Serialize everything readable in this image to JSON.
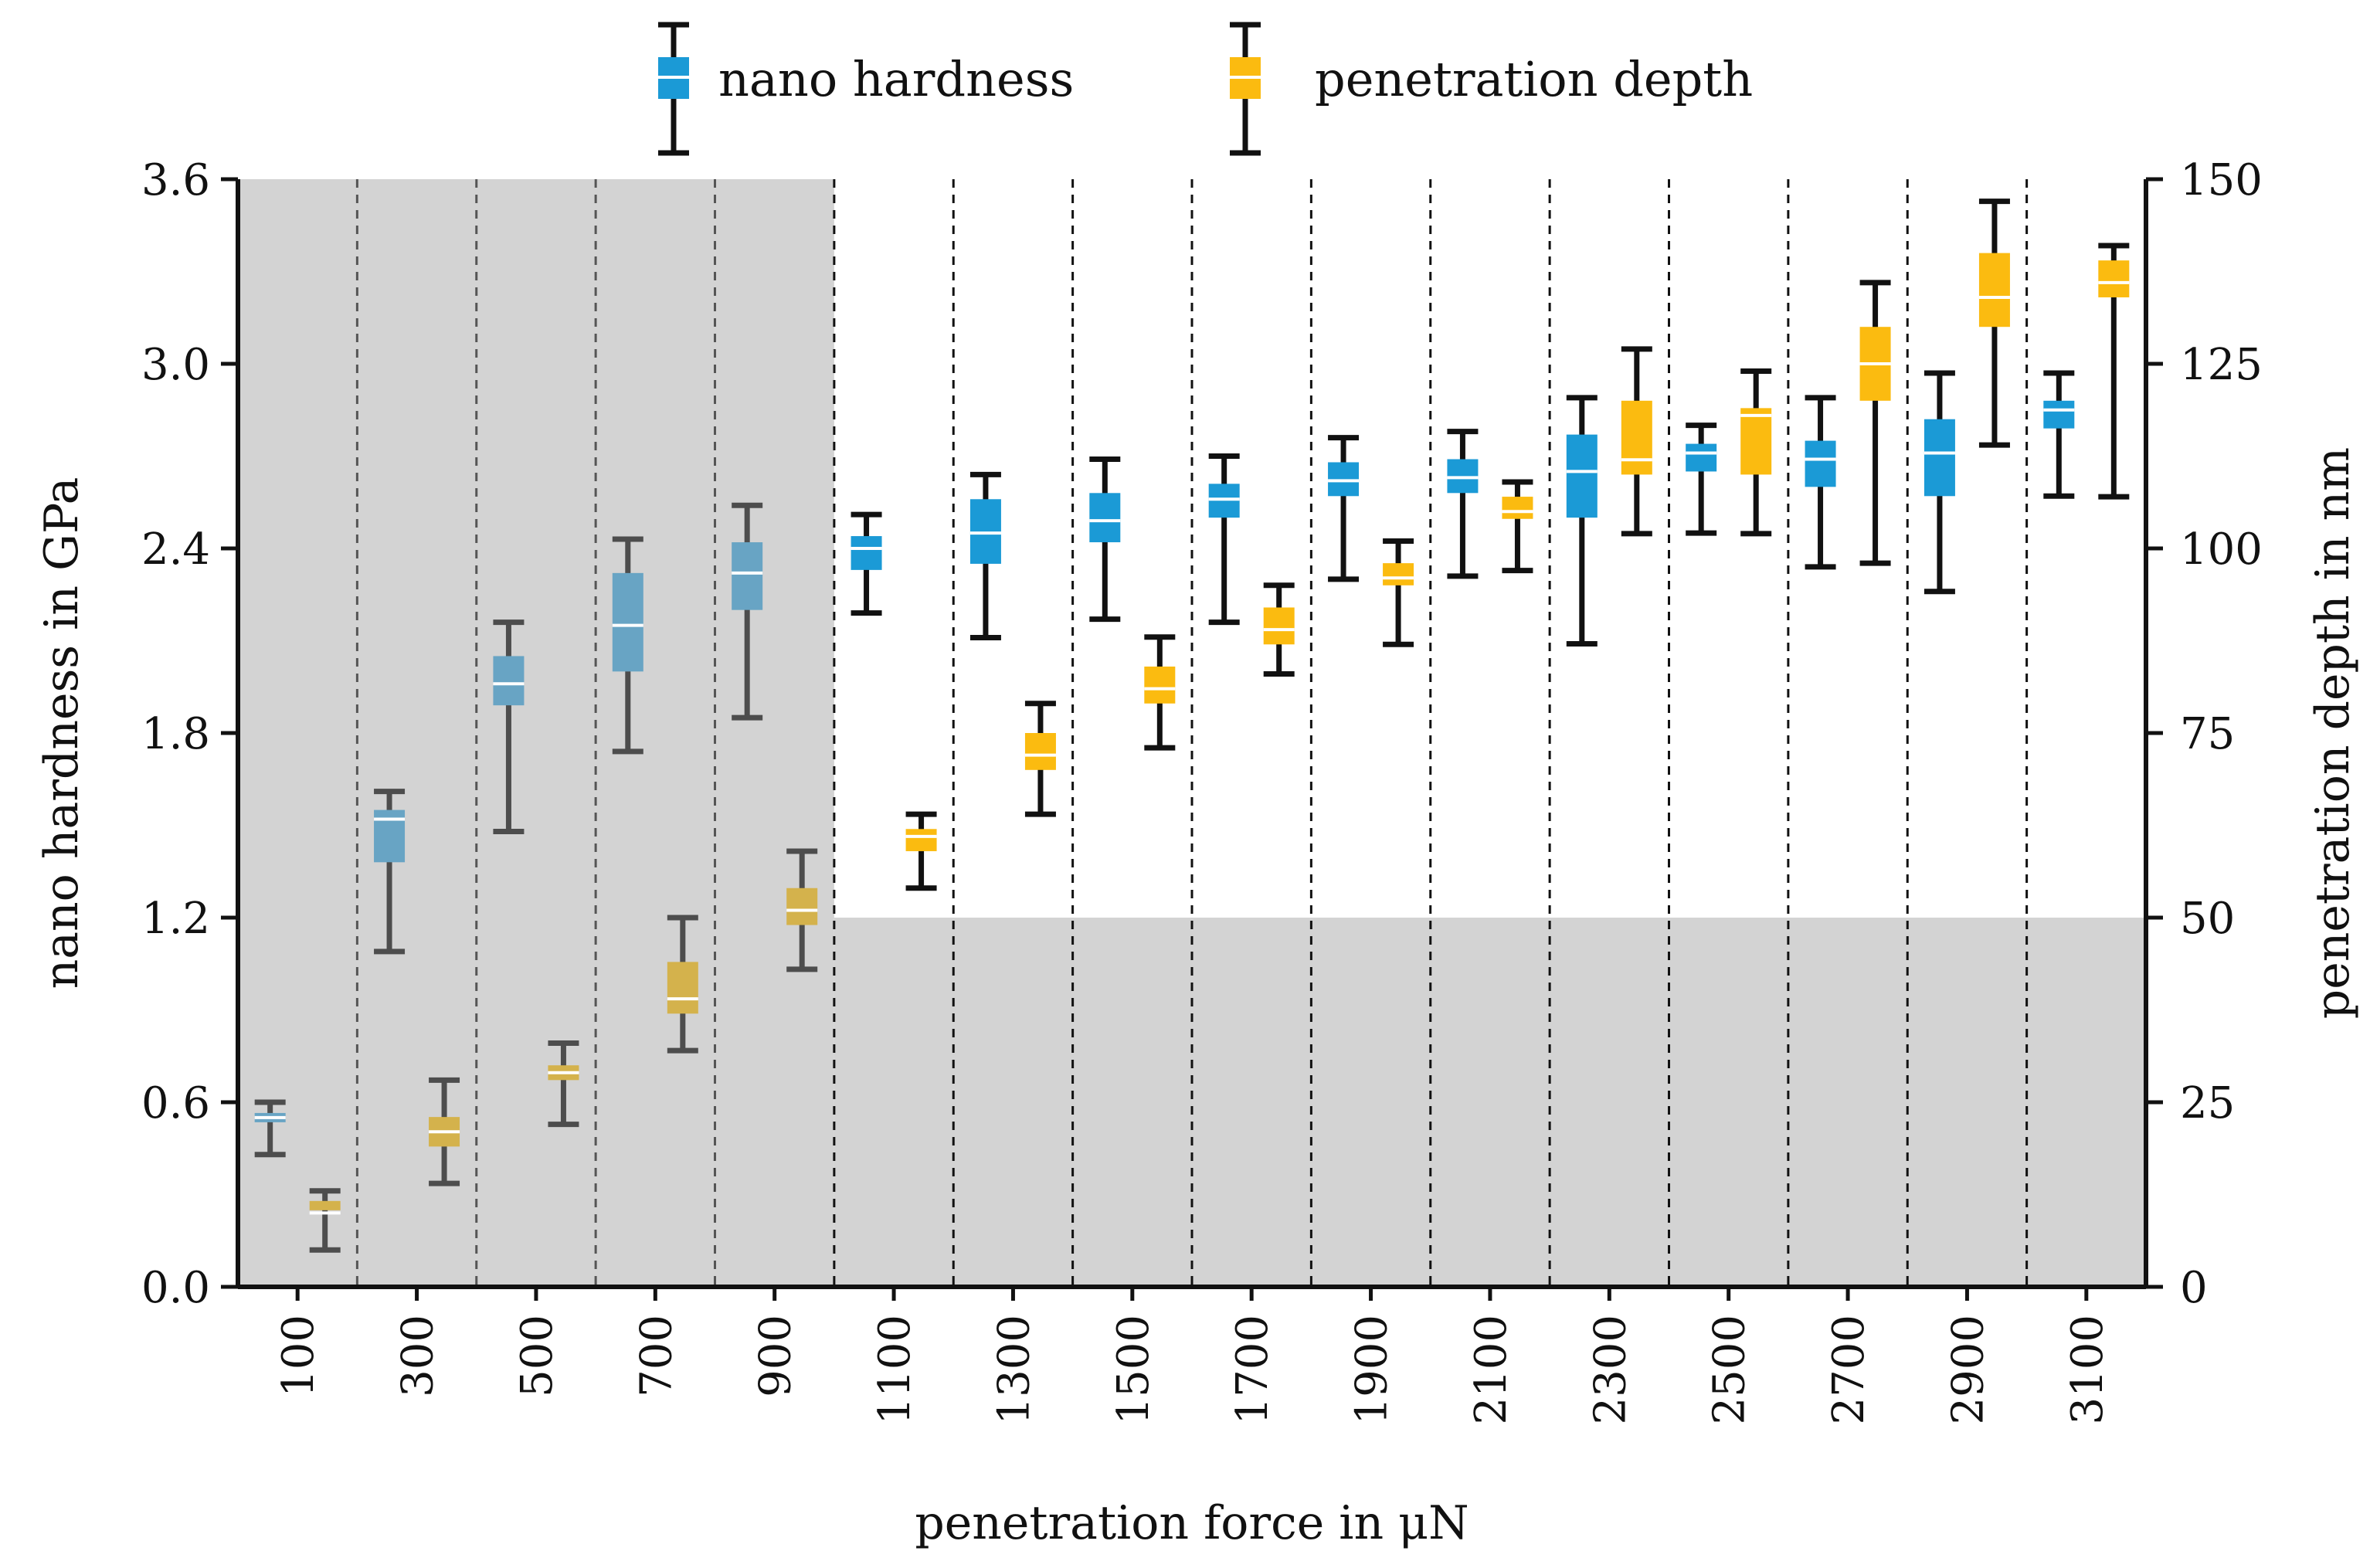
{
  "chart_data": {
    "type": "box",
    "x": [
      100,
      300,
      500,
      700,
      900,
      1100,
      1300,
      1500,
      1700,
      1900,
      2100,
      2300,
      2500,
      2700,
      2900,
      3100
    ],
    "xlabel": "penetration force in μN",
    "ylabel_left": "nano hardness in GPa",
    "ylabel_right": "penetration depth in nm",
    "ylim_left": [
      0,
      3.6
    ],
    "ylim_right": [
      0,
      150
    ],
    "yticks_left": [
      "0.0",
      "0.6",
      "1.2",
      "1.8",
      "2.4",
      "3.0",
      "3.6"
    ],
    "yticks_right": [
      "0",
      "25",
      "50",
      "75",
      "100",
      "125",
      "150"
    ],
    "legend": {
      "position": "top-center",
      "entries": [
        "nano hardness",
        "penetration depth"
      ]
    },
    "shaded_regions": [
      {
        "x_from": 100,
        "x_to": 900,
        "y_from": 0,
        "y_to": 3.6,
        "axis": "left"
      },
      {
        "x_from": 1100,
        "x_to": 3100,
        "y_from": 0,
        "y_to": 1.2,
        "axis": "left"
      }
    ],
    "colors": {
      "hardness": "#1b9ad6",
      "depth": "#fbbb10",
      "hardness_shaded": "#68a4c4",
      "depth_shaded": "#d4b24c",
      "whisker": "#111111",
      "whisker_shaded": "#4d4d4d",
      "shade": "#d3d3d3"
    },
    "series": [
      {
        "name": "nano hardness",
        "axis": "left",
        "min": [
          0.43,
          1.09,
          1.48,
          1.74,
          1.85,
          2.19,
          2.11,
          2.17,
          2.16,
          2.3,
          2.31,
          2.09,
          2.45,
          2.34,
          2.26,
          2.57
        ],
        "q1": [
          0.55,
          1.38,
          1.89,
          2.0,
          2.2,
          2.33,
          2.35,
          2.42,
          2.5,
          2.57,
          2.58,
          2.5,
          2.65,
          2.6,
          2.57,
          2.79
        ],
        "median": [
          0.55,
          1.52,
          1.96,
          2.15,
          2.32,
          2.4,
          2.45,
          2.49,
          2.56,
          2.62,
          2.63,
          2.65,
          2.71,
          2.69,
          2.71,
          2.85
        ],
        "q3": [
          0.55,
          1.55,
          2.05,
          2.32,
          2.42,
          2.44,
          2.56,
          2.58,
          2.61,
          2.68,
          2.69,
          2.77,
          2.74,
          2.75,
          2.82,
          2.88
        ],
        "max": [
          0.6,
          1.61,
          2.16,
          2.43,
          2.54,
          2.51,
          2.64,
          2.69,
          2.7,
          2.76,
          2.78,
          2.89,
          2.8,
          2.89,
          2.97,
          2.97
        ]
      },
      {
        "name": "penetration depth",
        "axis": "right",
        "min": [
          5,
          14,
          22,
          32,
          43,
          54,
          64,
          73,
          83,
          87,
          97,
          102,
          102,
          98,
          114,
          107
        ],
        "q1": [
          10,
          19,
          28,
          37,
          49,
          59,
          70,
          79,
          87,
          95,
          104,
          110,
          110,
          120,
          130,
          134
        ],
        "median": [
          10,
          21,
          29,
          39,
          51,
          61,
          72,
          81,
          89,
          96,
          105,
          112,
          118,
          125,
          134,
          136
        ],
        "q3": [
          11,
          23,
          30,
          44,
          54,
          62,
          75,
          84,
          92,
          98,
          107,
          120,
          119,
          130,
          140,
          139
        ],
        "max": [
          13,
          28,
          33,
          50,
          59,
          64,
          79,
          88,
          95,
          101,
          109,
          127,
          124,
          136,
          147,
          141
        ]
      }
    ]
  }
}
